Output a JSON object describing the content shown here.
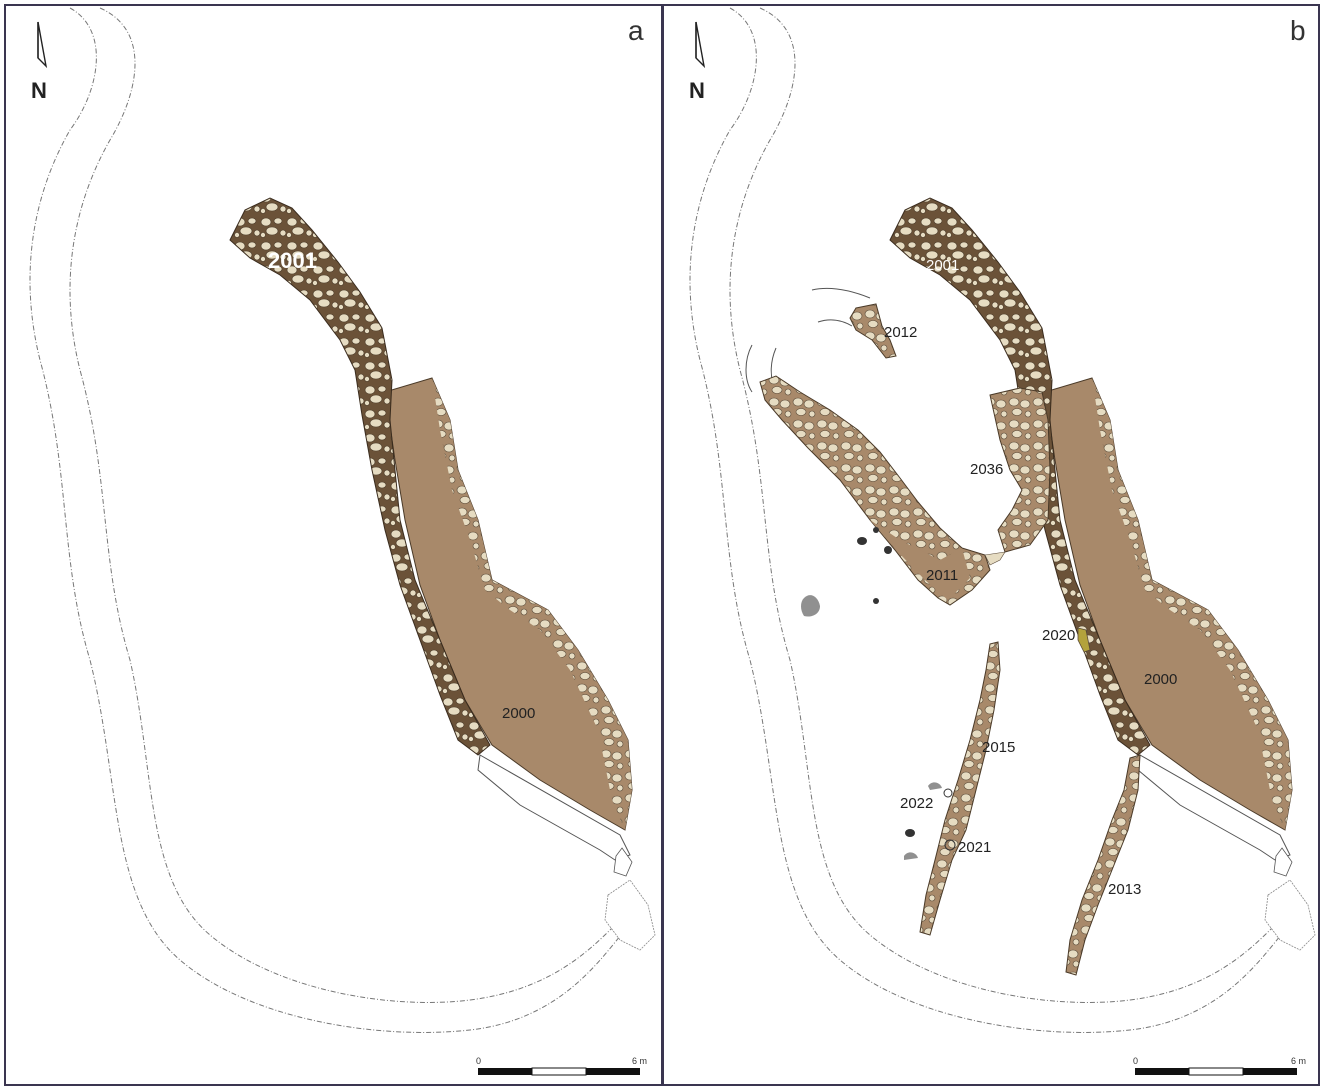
{
  "panels": [
    {
      "letter": "a",
      "north_label": "N",
      "features": [
        {
          "id": "2001"
        },
        {
          "id": "2000"
        }
      ],
      "scale": {
        "start_label": "0",
        "end_label": "6 m"
      }
    },
    {
      "letter": "b",
      "north_label": "N",
      "features": [
        {
          "id": "2001"
        },
        {
          "id": "2012"
        },
        {
          "id": "2036"
        },
        {
          "id": "2011"
        },
        {
          "id": "2020"
        },
        {
          "id": "2000"
        },
        {
          "id": "2015"
        },
        {
          "id": "2022"
        },
        {
          "id": "2021"
        },
        {
          "id": "2013"
        }
      ],
      "scale": {
        "start_label": "0",
        "end_label": "6 m"
      }
    }
  ],
  "colors": {
    "wall_fill": "#6b5238",
    "floor_fill": "#a8896a",
    "stone_fill": "#e6dcc2",
    "stone_stroke": "#5a4a38",
    "frame": "#3a3550",
    "post_dark": "#333333",
    "post_grey": "#909090",
    "feature_2020": "#b3a23c"
  },
  "icons": [
    "north-arrow-icon",
    "scale-bar-icon"
  ]
}
